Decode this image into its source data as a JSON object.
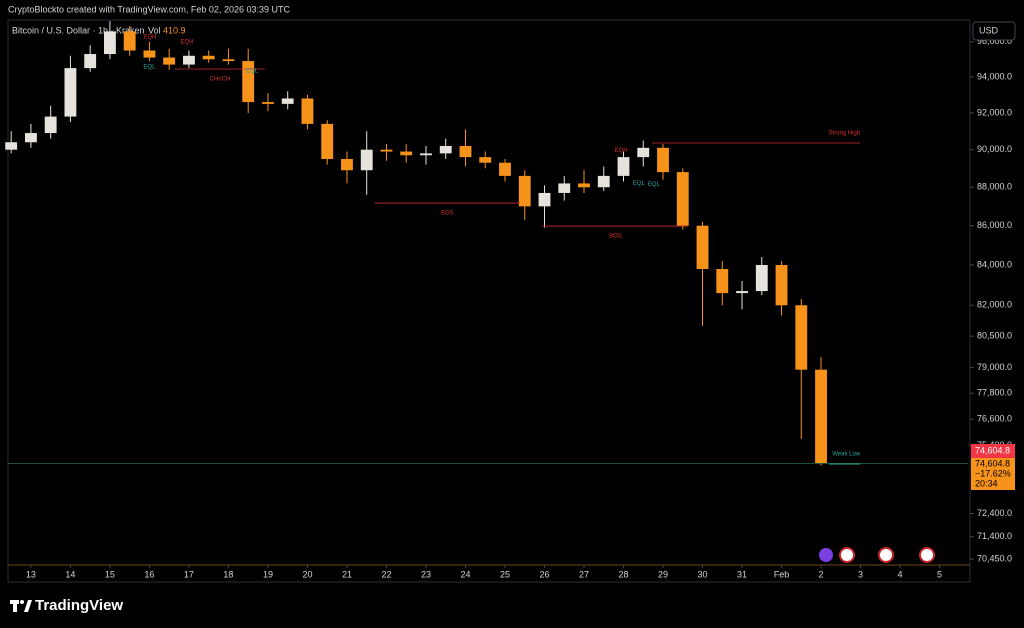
{
  "header": {
    "text": "CryptoBlockto created with TradingView.com, Feb 02, 2026 03:39 UTC"
  },
  "footer": {
    "logo_text": "TradingView"
  },
  "chart_data": {
    "type": "candlestick",
    "title": "Bitcoin / U.S. Dollar · 1h · Kraken",
    "volume_label": "Vol",
    "volume_value": 410.9,
    "currency": "USD",
    "log_scale": true,
    "grid": false,
    "up_color": "#e6e3dc",
    "down_color": "#f7931a",
    "x": [
      -0.5,
      0,
      0.5,
      1,
      1.5,
      2,
      2.5,
      3,
      3.5,
      4,
      4.5,
      5,
      5.5,
      6,
      6.5,
      7,
      7.5,
      8,
      8.5,
      9,
      9.5,
      10,
      10.5,
      11,
      11.5,
      12,
      12.5,
      13,
      13.5,
      14,
      14.5,
      15,
      15.5,
      16,
      16.5,
      17,
      17.5,
      18,
      18.5,
      19,
      19.5,
      20
    ],
    "open": [
      90000,
      90400,
      90900,
      91800,
      94500,
      95300,
      96600,
      95500,
      95100,
      94700,
      95200,
      95000,
      94900,
      92600,
      92500,
      92800,
      91400,
      89500,
      88900,
      90000,
      89900,
      89700,
      89800,
      90200,
      89600,
      89300,
      88600,
      87000,
      87700,
      88200,
      88000,
      88600,
      89600,
      90100,
      88800,
      86000,
      83800,
      82600,
      82700,
      84000,
      82000,
      78900
    ],
    "high": [
      91000,
      91400,
      92400,
      95200,
      95800,
      97200,
      96900,
      96000,
      95600,
      95500,
      95500,
      95600,
      95600,
      93100,
      93200,
      93000,
      91600,
      89900,
      91000,
      90300,
      90300,
      90200,
      90600,
      91100,
      89900,
      89500,
      88900,
      88100,
      88600,
      88900,
      89100,
      89900,
      90500,
      90300,
      89000,
      86200,
      84200,
      83200,
      84400,
      84200,
      82300,
      79500
    ],
    "low": [
      89800,
      90100,
      90600,
      91500,
      94300,
      95000,
      95200,
      94900,
      94400,
      94500,
      94800,
      94700,
      92000,
      92100,
      92200,
      91100,
      89200,
      88200,
      87600,
      89400,
      89300,
      89200,
      89500,
      89100,
      89000,
      88300,
      86300,
      85900,
      87300,
      87700,
      87800,
      88300,
      89100,
      88400,
      85800,
      81000,
      82000,
      81800,
      82500,
      81500,
      75700,
      74500
    ],
    "close": [
      90400,
      90900,
      91800,
      94500,
      95300,
      96600,
      95500,
      95100,
      94700,
      95200,
      95000,
      94900,
      92600,
      92500,
      92800,
      91400,
      89500,
      88900,
      90000,
      89900,
      89700,
      89800,
      90200,
      89600,
      89300,
      88600,
      87000,
      87700,
      88200,
      88000,
      88600,
      89600,
      90100,
      88800,
      86000,
      83800,
      82600,
      82700,
      84000,
      82000,
      78900,
      74604.8
    ],
    "xlim": [
      -0.58,
      23.72
    ],
    "xticks": [
      {
        "value": 0,
        "label": "13"
      },
      {
        "value": 1,
        "label": "14"
      },
      {
        "value": 2,
        "label": "15"
      },
      {
        "value": 3,
        "label": "16"
      },
      {
        "value": 4,
        "label": "17"
      },
      {
        "value": 5,
        "label": "18"
      },
      {
        "value": 6,
        "label": "19"
      },
      {
        "value": 7,
        "label": "20"
      },
      {
        "value": 8,
        "label": "21"
      },
      {
        "value": 9,
        "label": "22"
      },
      {
        "value": 10,
        "label": "23"
      },
      {
        "value": 11,
        "label": "24"
      },
      {
        "value": 12,
        "label": "25"
      },
      {
        "value": 13,
        "label": "26"
      },
      {
        "value": 14,
        "label": "27"
      },
      {
        "value": 15,
        "label": "28"
      },
      {
        "value": 16,
        "label": "29"
      },
      {
        "value": 17,
        "label": "30"
      },
      {
        "value": 18,
        "label": "31"
      },
      {
        "value": 19,
        "label": "Feb"
      },
      {
        "value": 20,
        "label": "2"
      },
      {
        "value": 21,
        "label": "3"
      },
      {
        "value": 22,
        "label": "4"
      },
      {
        "value": 23,
        "label": "5"
      }
    ],
    "ylim": [
      70200,
      97260
    ],
    "yticks": [
      {
        "value": 96000,
        "label": "96,000.0"
      },
      {
        "value": 94000,
        "label": "94,000.0"
      },
      {
        "value": 92000,
        "label": "92,000.0"
      },
      {
        "value": 90000,
        "label": "90,000.0"
      },
      {
        "value": 88000,
        "label": "88,000.0"
      },
      {
        "value": 86000,
        "label": "86,000.0"
      },
      {
        "value": 84000,
        "label": "84,000.0"
      },
      {
        "value": 82000,
        "label": "82,000.0"
      },
      {
        "value": 80500,
        "label": "80,500.0"
      },
      {
        "value": 79000,
        "label": "79,000.0"
      },
      {
        "value": 77800,
        "label": "77,800.0"
      },
      {
        "value": 76600,
        "label": "76,600.0"
      },
      {
        "value": 75400,
        "label": "75,400.0"
      },
      {
        "value": 72400,
        "label": "72,400.0"
      },
      {
        "value": 71400,
        "label": "71,400.0"
      },
      {
        "value": 70450,
        "label": "70,450.0"
      }
    ],
    "last_price": {
      "value": 74604.8,
      "label": "74,604.8"
    },
    "change_percent": {
      "value": -17.62,
      "label": "−17.62%"
    },
    "countdown": "20:34",
    "levels": [
      {
        "text": "CHoCH",
        "value": 94450,
        "x_start": 3.65,
        "x_end": 5.92,
        "color": "#d32f2f"
      },
      {
        "text": "BOS",
        "value": 87170,
        "x_start": 8.7,
        "x_end": 12.38,
        "color": "#d32f2f"
      },
      {
        "text": "BOS",
        "value": 85980,
        "x_start": 12.96,
        "x_end": 16.63,
        "color": "#d32f2f"
      },
      {
        "text": "Strong High",
        "value": 90360,
        "x_start": 15.72,
        "x_end": 20.99,
        "color": "#d32f2f"
      },
      {
        "text": "Weak Low",
        "value": 74570,
        "x_start": 20.2,
        "x_end": 20.99,
        "color": "#26a69a"
      }
    ],
    "markers": [
      {
        "text": "EQH",
        "x": 3.01,
        "value": 96280,
        "color": "#d32f2f"
      },
      {
        "text": "EQH",
        "x": 3.95,
        "value": 96000,
        "color": "#d32f2f"
      },
      {
        "text": "EQL",
        "x": 3.0,
        "value": 94560,
        "color": "#26a69a"
      },
      {
        "text": "EQL",
        "x": 5.6,
        "value": 94340,
        "color": "#26a69a"
      },
      {
        "text": "EQH",
        "x": 14.94,
        "value": 89960,
        "color": "#d32f2f"
      },
      {
        "text": "EQL",
        "x": 15.39,
        "value": 88200,
        "color": "#26a69a"
      },
      {
        "text": "EQL",
        "x": 15.77,
        "value": 88150,
        "color": "#26a69a"
      }
    ]
  }
}
